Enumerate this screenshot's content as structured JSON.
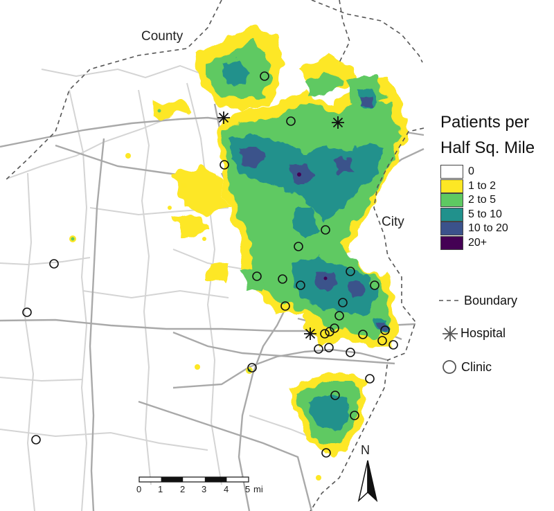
{
  "map_labels": {
    "county": "County",
    "city": "City"
  },
  "legend": {
    "title_line1": "Patients per",
    "title_line2": "Half Sq. Mile",
    "bins": [
      {
        "label": "0",
        "color": "#ffffff"
      },
      {
        "label": "1 to 2",
        "color": "#fde725"
      },
      {
        "label": "2 to 5",
        "color": "#5ec962"
      },
      {
        "label": "5 to 10",
        "color": "#21918c"
      },
      {
        "label": "10 to 20",
        "color": "#3b528b"
      },
      {
        "label": "20+",
        "color": "#440154"
      }
    ],
    "boundary_label": "Boundary",
    "hospital_label": "Hospital",
    "clinic_label": "Clinic"
  },
  "scale_bar": {
    "ticks": [
      "0",
      "1",
      "2",
      "3",
      "4",
      "5"
    ],
    "unit": "mi"
  },
  "north_arrow": {
    "label": "N"
  },
  "colors": {
    "road_major": "#a8a8a8",
    "road_minor": "#d2d2d2",
    "boundary": "#555555",
    "low_density": "#fde725",
    "mid_density": "#5ec962",
    "high_density": "#21918c",
    "very_high_density": "#3b528b",
    "max_density": "#440154"
  },
  "icons": {
    "hospital": "asterisk-icon",
    "clinic": "circle-icon",
    "north": "north-arrow-icon"
  }
}
